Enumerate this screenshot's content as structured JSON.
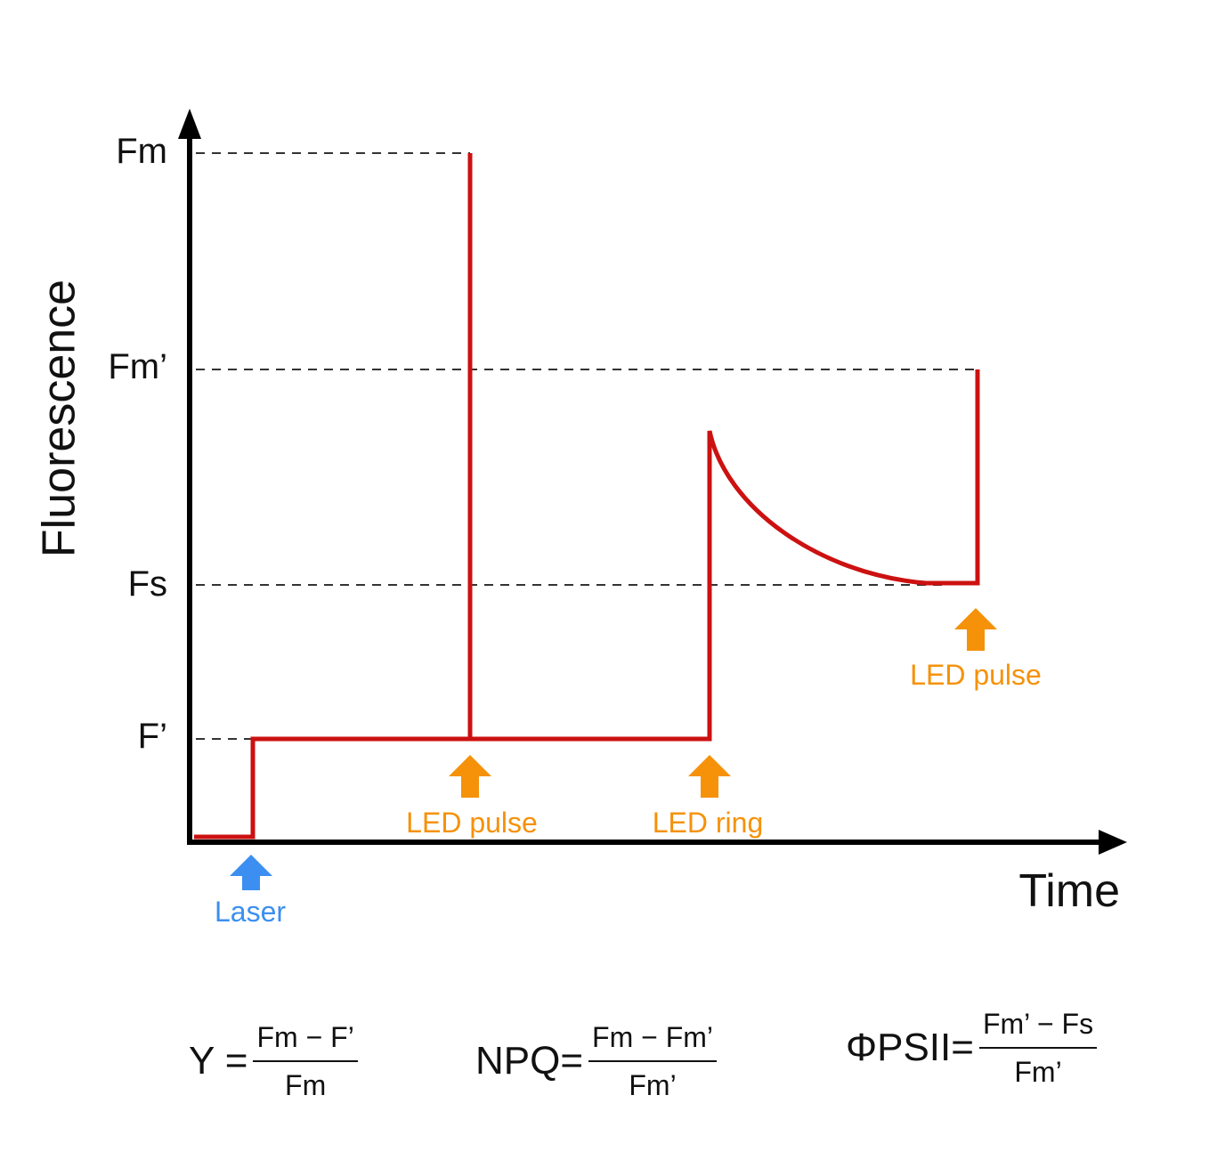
{
  "axes": {
    "y_title": "Fluorescence",
    "x_title": "Time"
  },
  "levels": [
    {
      "key": "Fm",
      "label": "Fm"
    },
    {
      "key": "Fm_prime",
      "label": "Fm’"
    },
    {
      "key": "Fs",
      "label": "Fs"
    },
    {
      "key": "F_prime",
      "label": "F’"
    }
  ],
  "annotations": {
    "laser": "Laser",
    "led_pulse_1": "LED pulse",
    "led_ring": "LED ring",
    "led_pulse_2": "LED pulse"
  },
  "formulas": [
    {
      "lhs": "Y =",
      "numerator": "Fm − F’",
      "denominator": "Fm"
    },
    {
      "lhs": "NPQ=",
      "numerator": "Fm − Fm’",
      "denominator": "Fm’"
    },
    {
      "lhs": "ΦPSII=",
      "numerator": "Fm’ − Fs",
      "denominator": "Fm’"
    }
  ],
  "colors": {
    "trace": "#cc1111",
    "led_arrow": "#f5920a",
    "laser_arrow": "#3c8ff0",
    "axis": "#000000"
  }
}
